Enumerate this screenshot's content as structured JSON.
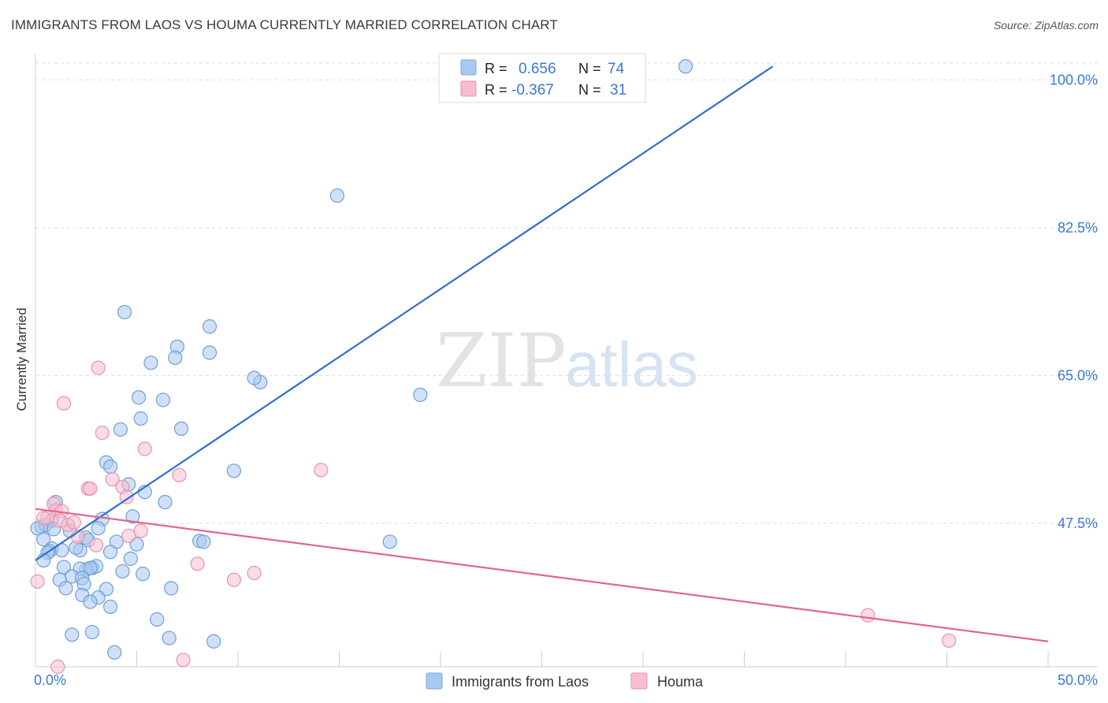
{
  "title": "IMMIGRANTS FROM LAOS VS HOUMA CURRENTLY MARRIED CORRELATION CHART",
  "source": "Source: ZipAtlas.com",
  "watermark": {
    "zip": "ZIP",
    "atlas": "atlas"
  },
  "legend_stats": [
    {
      "r_label": "R =",
      "r_value": "0.656",
      "n_label": "N =",
      "n_value": "74",
      "color": "#a9c8f0",
      "stroke": "#7aa8e0"
    },
    {
      "r_label": "R =",
      "r_value": "-0.367",
      "n_label": "N =",
      "n_value": "31",
      "color": "#f7bdd0",
      "stroke": "#ea8fae"
    }
  ],
  "colors": {
    "blue_fill": "#a9c8f0",
    "blue_stroke": "#6f9fd8",
    "blue_line": "#2f6fcc",
    "pink_fill": "#f7bdd0",
    "pink_stroke": "#e792ae",
    "pink_line": "#e0668f",
    "tick_text": "#3b78d0",
    "grid": "#dedede"
  },
  "chart_data": {
    "type": "scatter",
    "title": "IMMIGRANTS FROM LAOS VS HOUMA CURRENTLY MARRIED CORRELATION CHART",
    "xlabel": "",
    "ylabel": "Currently Married",
    "xlim": [
      0,
      50
    ],
    "ylim": [
      30.5,
      102
    ],
    "x_tick_labels": [
      {
        "value": 0,
        "label": "0.0%"
      },
      {
        "value": 50,
        "label": "50.0%"
      }
    ],
    "y_tick_labels": [
      {
        "value": 47.5,
        "label": "47.5%"
      },
      {
        "value": 65.0,
        "label": "65.0%"
      },
      {
        "value": 82.5,
        "label": "82.5%"
      },
      {
        "value": 100.0,
        "label": "100.0%"
      }
    ],
    "series": [
      {
        "name": "Immigrants from Laos",
        "color": "#a9c8f0",
        "trend": {
          "x": [
            0,
            36.4
          ],
          "y": [
            43.1,
            101.6
          ]
        },
        "points": [
          [
            32.1,
            101.6
          ],
          [
            14.9,
            86.3
          ],
          [
            19.0,
            62.7
          ],
          [
            4.4,
            72.5
          ],
          [
            8.6,
            70.8
          ],
          [
            8.6,
            67.7
          ],
          [
            7.0,
            68.4
          ],
          [
            6.9,
            67.1
          ],
          [
            5.7,
            66.5
          ],
          [
            11.1,
            64.2
          ],
          [
            10.8,
            64.7
          ],
          [
            5.1,
            62.4
          ],
          [
            6.3,
            62.1
          ],
          [
            5.2,
            59.9
          ],
          [
            4.2,
            58.6
          ],
          [
            7.2,
            58.7
          ],
          [
            3.5,
            54.7
          ],
          [
            3.7,
            54.2
          ],
          [
            9.8,
            53.7
          ],
          [
            4.6,
            52.1
          ],
          [
            5.4,
            51.2
          ],
          [
            6.4,
            50.0
          ],
          [
            1.0,
            50.0
          ],
          [
            3.3,
            48.0
          ],
          [
            4.8,
            48.3
          ],
          [
            0.3,
            47.1
          ],
          [
            0.8,
            47.8
          ],
          [
            0.5,
            47.3
          ],
          [
            0.9,
            46.8
          ],
          [
            3.1,
            46.9
          ],
          [
            1.7,
            46.6
          ],
          [
            2.5,
            45.8
          ],
          [
            2.6,
            45.5
          ],
          [
            0.4,
            45.6
          ],
          [
            4.0,
            45.3
          ],
          [
            5.0,
            45.0
          ],
          [
            8.1,
            45.4
          ],
          [
            8.3,
            45.3
          ],
          [
            17.5,
            45.3
          ],
          [
            0.8,
            44.5
          ],
          [
            2.2,
            44.3
          ],
          [
            0.7,
            44.2
          ],
          [
            1.3,
            44.3
          ],
          [
            0.6,
            44.0
          ],
          [
            3.7,
            44.1
          ],
          [
            4.7,
            43.3
          ],
          [
            0.4,
            43.1
          ],
          [
            1.4,
            42.3
          ],
          [
            2.8,
            42.2
          ],
          [
            3.0,
            42.4
          ],
          [
            2.5,
            42.0
          ],
          [
            2.2,
            42.1
          ],
          [
            2.7,
            42.2
          ],
          [
            4.3,
            41.8
          ],
          [
            5.3,
            41.5
          ],
          [
            1.8,
            41.2
          ],
          [
            2.3,
            41.0
          ],
          [
            1.2,
            40.8
          ],
          [
            2.4,
            40.3
          ],
          [
            1.5,
            39.8
          ],
          [
            3.5,
            39.7
          ],
          [
            6.7,
            39.8
          ],
          [
            2.3,
            39.0
          ],
          [
            3.1,
            38.7
          ],
          [
            2.7,
            38.2
          ],
          [
            3.7,
            37.6
          ],
          [
            6.0,
            36.1
          ],
          [
            2.8,
            34.6
          ],
          [
            1.8,
            34.3
          ],
          [
            6.6,
            33.9
          ],
          [
            8.8,
            33.5
          ],
          [
            3.9,
            32.2
          ],
          [
            0.1,
            46.9
          ],
          [
            2.0,
            44.6
          ]
        ]
      },
      {
        "name": "Houma",
        "color": "#f7bdd0",
        "trend": {
          "x": [
            0,
            50
          ],
          "y": [
            49.2,
            33.5
          ]
        },
        "points": [
          [
            3.1,
            65.9
          ],
          [
            1.4,
            61.7
          ],
          [
            3.3,
            58.2
          ],
          [
            5.4,
            56.3
          ],
          [
            14.1,
            53.8
          ],
          [
            7.1,
            53.2
          ],
          [
            3.8,
            52.7
          ],
          [
            4.3,
            51.8
          ],
          [
            2.6,
            51.6
          ],
          [
            2.7,
            51.6
          ],
          [
            4.5,
            50.6
          ],
          [
            0.9,
            49.8
          ],
          [
            1.0,
            49.0
          ],
          [
            1.3,
            48.9
          ],
          [
            0.6,
            48.2
          ],
          [
            0.4,
            48.1
          ],
          [
            1.2,
            47.8
          ],
          [
            1.6,
            47.3
          ],
          [
            1.9,
            47.6
          ],
          [
            5.2,
            46.6
          ],
          [
            4.6,
            46.0
          ],
          [
            2.1,
            45.9
          ],
          [
            3.0,
            44.9
          ],
          [
            8.0,
            42.7
          ],
          [
            10.8,
            41.6
          ],
          [
            9.8,
            40.8
          ],
          [
            0.1,
            40.6
          ],
          [
            41.1,
            36.6
          ],
          [
            45.1,
            33.6
          ],
          [
            7.3,
            31.3
          ],
          [
            1.1,
            30.5
          ]
        ]
      }
    ]
  }
}
